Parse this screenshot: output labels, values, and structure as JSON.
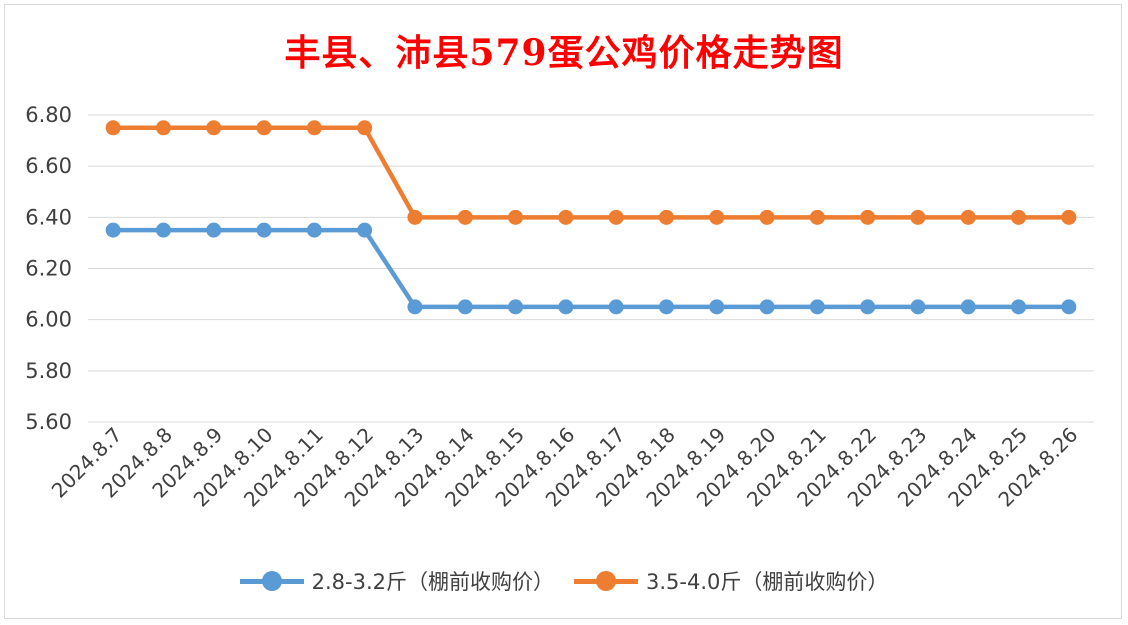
{
  "chart_data": {
    "type": "line",
    "title": "丰县、沛县579蛋公鸡价格走势图",
    "categories": [
      "2024.8.7",
      "2024.8.8",
      "2024.8.9",
      "2024.8.10",
      "2024.8.11",
      "2024.8.12",
      "2024.8.13",
      "2024.8.14",
      "2024.8.15",
      "2024.8.16",
      "2024.8.17",
      "2024.8.18",
      "2024.8.19",
      "2024.8.20",
      "2024.8.21",
      "2024.8.22",
      "2024.8.23",
      "2024.8.24",
      "2024.8.25",
      "2024.8.26"
    ],
    "series": [
      {
        "name": "2.8-3.2斤（棚前收购价）",
        "color": "#5b9bd5",
        "values": [
          6.35,
          6.35,
          6.35,
          6.35,
          6.35,
          6.35,
          6.05,
          6.05,
          6.05,
          6.05,
          6.05,
          6.05,
          6.05,
          6.05,
          6.05,
          6.05,
          6.05,
          6.05,
          6.05,
          6.05
        ]
      },
      {
        "name": "3.5-4.0斤（棚前收购价）",
        "color": "#ed7d31",
        "values": [
          6.75,
          6.75,
          6.75,
          6.75,
          6.75,
          6.75,
          6.4,
          6.4,
          6.4,
          6.4,
          6.4,
          6.4,
          6.4,
          6.4,
          6.4,
          6.4,
          6.4,
          6.4,
          6.4,
          6.4
        ]
      }
    ],
    "ylim": [
      5.6,
      6.8
    ],
    "yticks": [
      "5.60",
      "5.80",
      "6.00",
      "6.20",
      "6.40",
      "6.60",
      "6.80"
    ],
    "xlabel": "",
    "ylabel": "",
    "grid": true,
    "legend_position": "bottom",
    "title_color": "#ff0000"
  }
}
